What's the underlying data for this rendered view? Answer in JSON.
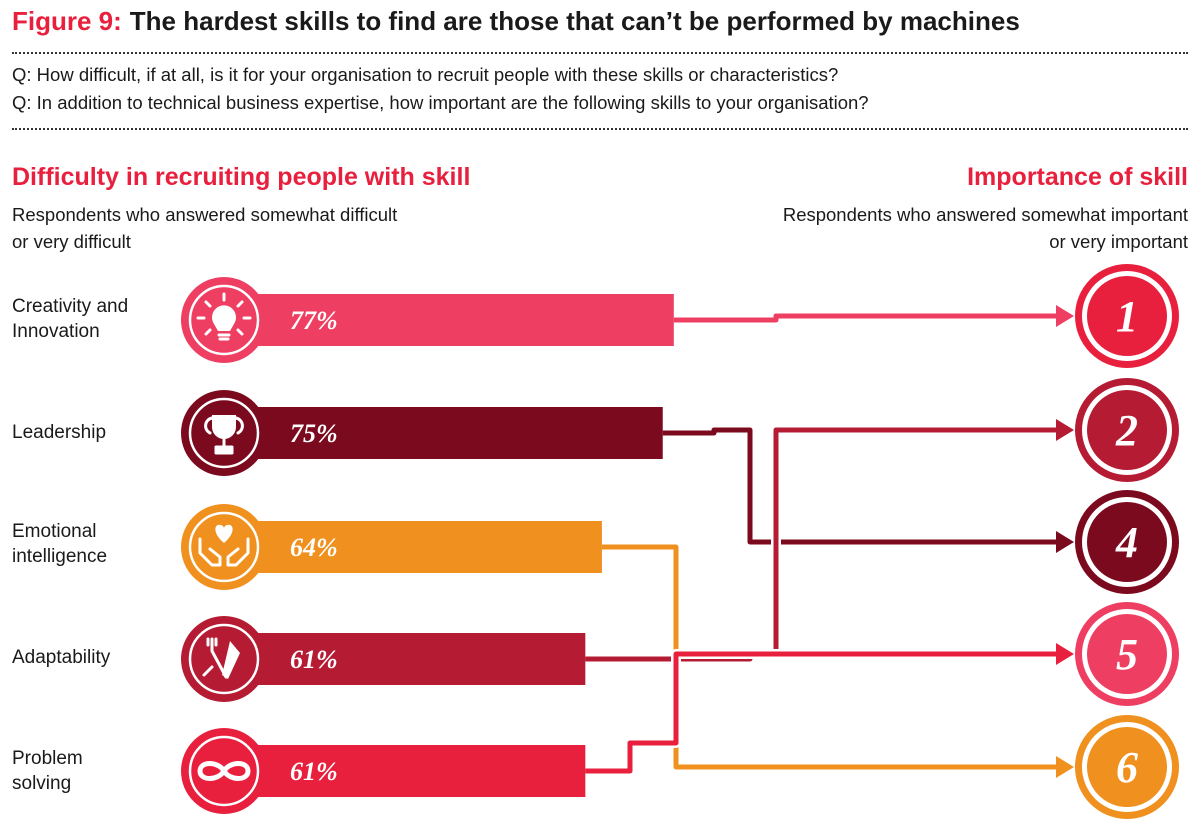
{
  "figure": {
    "label": "Figure 9:",
    "title": "The hardest skills to find are those that can’t be performed by machines"
  },
  "questions": [
    "Q: How difficult, if at all, is it for your organisation to recruit people with these skills or characteristics?",
    "Q: In addition to technical business expertise, how important are the following skills to your organisation?"
  ],
  "left_header": {
    "title": "Difficulty in recruiting people with skill",
    "line1": "Respondents who answered somewhat difficult",
    "line2": "or very difficult"
  },
  "right_header": {
    "title": "Importance of skill",
    "line1": "Respondents who answered somewhat important",
    "line2": "or very important"
  },
  "skills": [
    {
      "line1": "Creativity and",
      "line2": "Innovation",
      "value_label": "77%",
      "icon": "lightbulb-icon"
    },
    {
      "line1": "Leadership",
      "line2": "",
      "value_label": "75%",
      "icon": "trophy-icon"
    },
    {
      "line1": "Emotional",
      "line2": "intelligence",
      "value_label": "64%",
      "icon": "heart-hands-icon"
    },
    {
      "line1": "Adaptability",
      "line2": "",
      "value_label": "61%",
      "icon": "tools-icon"
    },
    {
      "line1": "Problem",
      "line2": "solving",
      "value_label": "61%",
      "icon": "infinity-icon"
    }
  ],
  "ranks": [
    "1",
    "2",
    "4",
    "5",
    "6"
  ],
  "colors": {
    "accent": "#e8203e",
    "pink": "#ee3f62",
    "dark_red": "#7c0a1e",
    "orange": "#f0901e",
    "crimson": "#b51c34",
    "red": "#e8203e"
  },
  "chart_data": {
    "type": "bar",
    "categories": [
      "Creativity and Innovation",
      "Leadership",
      "Emotional intelligence",
      "Adaptability",
      "Problem solving"
    ],
    "values": [
      77,
      75,
      64,
      61,
      61
    ],
    "importance_rank": [
      1,
      4,
      6,
      2,
      5
    ],
    "bar_colors": [
      "#ee3f62",
      "#7c0a1e",
      "#f0901e",
      "#b51c34",
      "#e8203e"
    ],
    "rank_circle_colors": [
      "#e8203e",
      "#b51c34",
      "#7c0a1e",
      "#ee3f62",
      "#f0901e"
    ],
    "title": "The hardest skills to find are those that can’t be performed by machines",
    "ylim": [
      0,
      100
    ]
  }
}
